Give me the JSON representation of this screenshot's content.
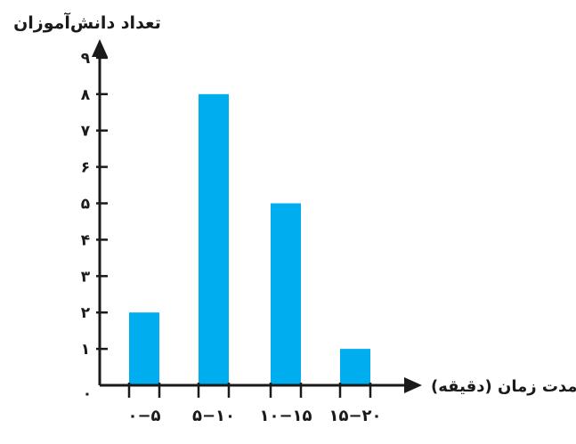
{
  "chart_data": {
    "type": "bar",
    "title": "",
    "ylabel": "تعداد دانش‌آموزان",
    "xlabel": "مدت زمان (دقیقه)",
    "categories": [
      "۰−۵",
      "۵−۱۰",
      "۱۰−۱۵",
      "۱۵−۲۰"
    ],
    "values": [
      2,
      8,
      5,
      1
    ],
    "ylim": [
      0,
      9
    ],
    "yticks": [
      0,
      1,
      2,
      3,
      4,
      5,
      6,
      7,
      8,
      9
    ],
    "ytick_labels": [
      "۰",
      "۱",
      "۲",
      "۳",
      "۴",
      "۵",
      "۶",
      "۷",
      "۸",
      "۹"
    ],
    "grid": false,
    "bar_color": "#00aeef",
    "axis_color": "#1a1a1a"
  }
}
